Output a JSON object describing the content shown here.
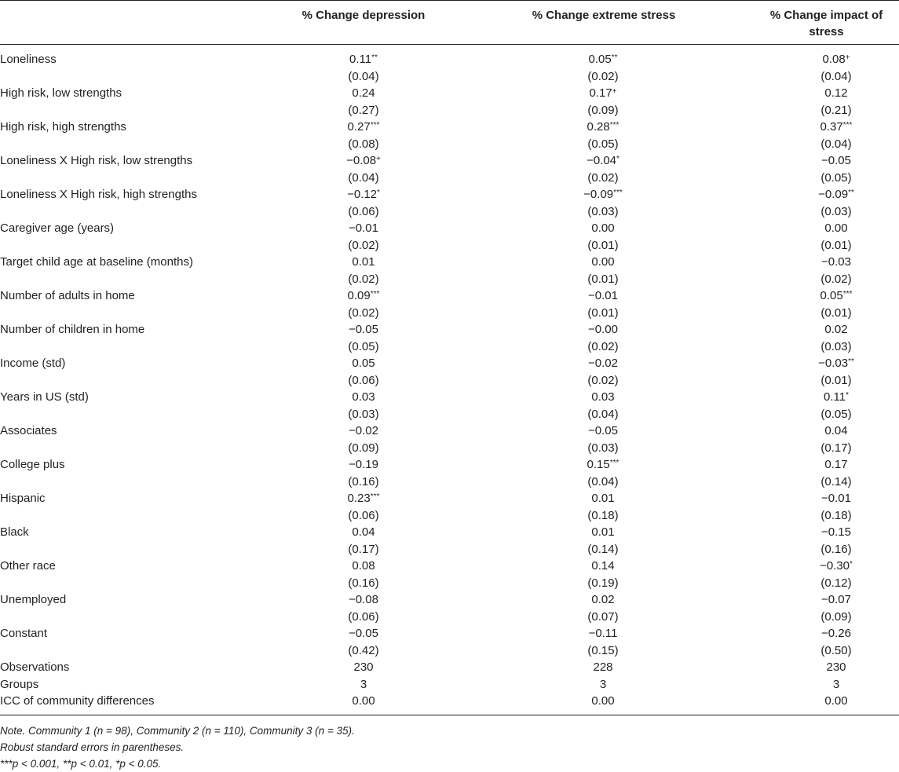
{
  "columns": [
    "% Change depression",
    "% Change extreme stress",
    "% Change impact of stress"
  ],
  "rows": [
    {
      "label": "Loneliness",
      "coef": [
        [
          "0.11",
          "**"
        ],
        [
          "0.05",
          "**"
        ],
        [
          "0.08",
          "+"
        ]
      ],
      "se": [
        "(0.04)",
        "(0.02)",
        "(0.04)"
      ]
    },
    {
      "label": "High risk, low strengths",
      "coef": [
        [
          "0.24",
          ""
        ],
        [
          "0.17",
          "+"
        ],
        [
          "0.12",
          ""
        ]
      ],
      "se": [
        "(0.27)",
        "(0.09)",
        "(0.21)"
      ]
    },
    {
      "label": "High risk, high strengths",
      "coef": [
        [
          "0.27",
          "***"
        ],
        [
          "0.28",
          "***"
        ],
        [
          "0.37",
          "***"
        ]
      ],
      "se": [
        "(0.08)",
        "(0.05)",
        "(0.04)"
      ]
    },
    {
      "label": "Loneliness X High risk, low strengths",
      "coef": [
        [
          "−0.08",
          "+"
        ],
        [
          "−0.04",
          "*"
        ],
        [
          "−0.05",
          ""
        ]
      ],
      "se": [
        "(0.04)",
        "(0.02)",
        "(0.05)"
      ]
    },
    {
      "label": "Loneliness X High risk, high strengths",
      "coef": [
        [
          "−0.12",
          "*"
        ],
        [
          "−0.09",
          "***"
        ],
        [
          "−0.09",
          "**"
        ]
      ],
      "se": [
        "(0.06)",
        "(0.03)",
        "(0.03)"
      ]
    },
    {
      "label": "Caregiver age (years)",
      "coef": [
        [
          "−0.01",
          ""
        ],
        [
          "0.00",
          ""
        ],
        [
          "0.00",
          ""
        ]
      ],
      "se": [
        "(0.02)",
        "(0.01)",
        "(0.01)"
      ]
    },
    {
      "label": "Target child age at baseline (months)",
      "coef": [
        [
          "0.01",
          ""
        ],
        [
          "0.00",
          ""
        ],
        [
          "−0.03",
          ""
        ]
      ],
      "se": [
        "(0.02)",
        "(0.01)",
        "(0.02)"
      ]
    },
    {
      "label": "Number of adults in home",
      "coef": [
        [
          "0.09",
          "***"
        ],
        [
          "−0.01",
          ""
        ],
        [
          "0.05",
          "***"
        ]
      ],
      "se": [
        "(0.02)",
        "(0.01)",
        "(0.01)"
      ]
    },
    {
      "label": "Number of children in home",
      "coef": [
        [
          "−0.05",
          ""
        ],
        [
          "−0.00",
          ""
        ],
        [
          "0.02",
          ""
        ]
      ],
      "se": [
        "(0.05)",
        "(0.02)",
        "(0.03)"
      ]
    },
    {
      "label": "Income (std)",
      "coef": [
        [
          "0.05",
          ""
        ],
        [
          "−0.02",
          ""
        ],
        [
          "−0.03",
          "**"
        ]
      ],
      "se": [
        "(0.06)",
        "(0.02)",
        "(0.01)"
      ]
    },
    {
      "label": "Years in US (std)",
      "coef": [
        [
          "0.03",
          ""
        ],
        [
          "0.03",
          ""
        ],
        [
          "0.11",
          "*"
        ]
      ],
      "se": [
        "(0.03)",
        "(0.04)",
        "(0.05)"
      ]
    },
    {
      "label": "Associates",
      "coef": [
        [
          "−0.02",
          ""
        ],
        [
          "−0.05",
          ""
        ],
        [
          "0.04",
          ""
        ]
      ],
      "se": [
        "(0.09)",
        "(0.03)",
        "(0.17)"
      ]
    },
    {
      "label": "College plus",
      "coef": [
        [
          "−0.19",
          ""
        ],
        [
          "0.15",
          "***"
        ],
        [
          "0.17",
          ""
        ]
      ],
      "se": [
        "(0.16)",
        "(0.04)",
        "(0.14)"
      ]
    },
    {
      "label": "Hispanic",
      "coef": [
        [
          "0.23",
          "***"
        ],
        [
          "0.01",
          ""
        ],
        [
          "−0.01",
          ""
        ]
      ],
      "se": [
        "(0.06)",
        "(0.18)",
        "(0.18)"
      ]
    },
    {
      "label": "Black",
      "coef": [
        [
          "0.04",
          ""
        ],
        [
          "0.01",
          ""
        ],
        [
          "−0.15",
          ""
        ]
      ],
      "se": [
        "(0.17)",
        "(0.14)",
        "(0.16)"
      ]
    },
    {
      "label": "Other race",
      "coef": [
        [
          "0.08",
          ""
        ],
        [
          "0.14",
          ""
        ],
        [
          "−0.30",
          "*"
        ]
      ],
      "se": [
        "(0.16)",
        "(0.19)",
        "(0.12)"
      ]
    },
    {
      "label": "Unemployed",
      "coef": [
        [
          "−0.08",
          ""
        ],
        [
          "0.02",
          ""
        ],
        [
          "−0.07",
          ""
        ]
      ],
      "se": [
        "(0.06)",
        "(0.07)",
        "(0.09)"
      ]
    },
    {
      "label": "Constant",
      "coef": [
        [
          "−0.05",
          ""
        ],
        [
          "−0.11",
          ""
        ],
        [
          "−0.26",
          ""
        ]
      ],
      "se": [
        "(0.42)",
        "(0.15)",
        "(0.50)"
      ]
    }
  ],
  "summary": [
    {
      "label": "Observations",
      "values": [
        "230",
        "228",
        "230"
      ]
    },
    {
      "label": "Groups",
      "values": [
        "3",
        "3",
        "3"
      ]
    },
    {
      "label": "ICC of community differences",
      "values": [
        "0.00",
        "0.00",
        "0.00"
      ]
    }
  ],
  "notes": {
    "line1": "Note. Community 1 (n = 98), Community 2 (n = 110), Community 3 (n = 35).",
    "line2": "Robust standard errors in parentheses.",
    "line3": "***p < 0.001, **p < 0.01, *p < 0.05."
  }
}
